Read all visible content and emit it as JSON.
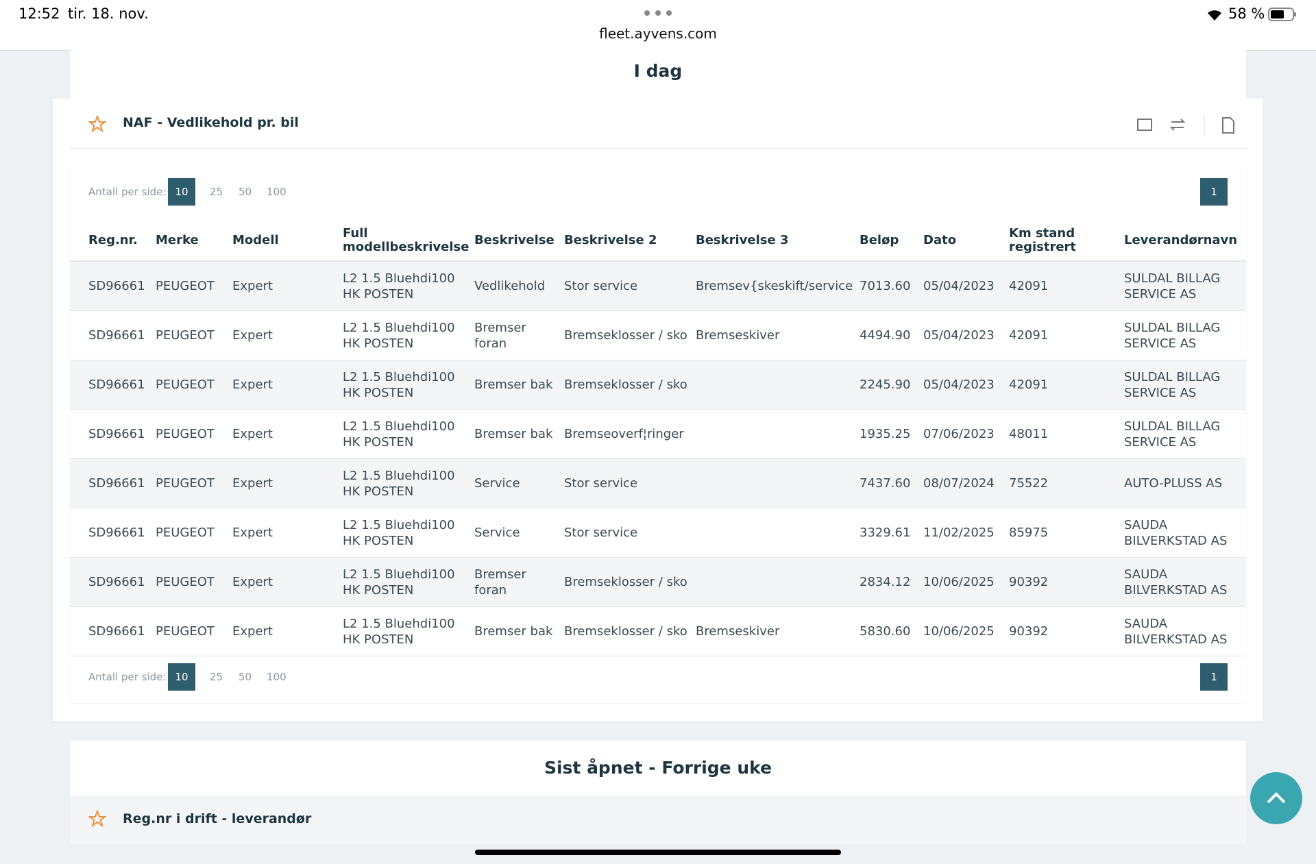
{
  "status_bar": {
    "time": "12:52",
    "date": "tir. 18. nov.",
    "url": "fleet.ayvens.com",
    "battery": "58 %"
  },
  "section_today": {
    "title": "I dag"
  },
  "report": {
    "title": "NAF - Vedlikehold pr. bil",
    "pagination": {
      "label": "Antall per side:",
      "sizes": [
        "10",
        "25",
        "50",
        "100"
      ],
      "page": "1"
    },
    "columns": [
      "Reg.nr.",
      "Merke",
      "Modell",
      "Full modellbeskrivelse",
      "Beskrivelse",
      "Beskrivelse 2",
      "Beskrivelse 3",
      "Beløp",
      "Dato",
      "Km stand registrert",
      "Leverandørnavn"
    ],
    "rows": [
      [
        "SD96661",
        "PEUGEOT",
        "Expert",
        "L2 1.5 Bluehdi100 HK POSTEN",
        "Vedlikehold",
        "Stor service",
        "Bremsev{skeskift/service",
        "7013.60",
        "05/04/2023",
        "42091",
        "SULDAL BILLAG SERVICE AS"
      ],
      [
        "SD96661",
        "PEUGEOT",
        "Expert",
        "L2 1.5 Bluehdi100 HK POSTEN",
        "Bremser foran",
        "Bremseklosser / sko",
        "Bremseskiver",
        "4494.90",
        "05/04/2023",
        "42091",
        "SULDAL BILLAG SERVICE AS"
      ],
      [
        "SD96661",
        "PEUGEOT",
        "Expert",
        "L2 1.5 Bluehdi100 HK POSTEN",
        "Bremser bak",
        "Bremseklosser / sko",
        null,
        "2245.90",
        "05/04/2023",
        "42091",
        "SULDAL BILLAG SERVICE AS"
      ],
      [
        "SD96661",
        "PEUGEOT",
        "Expert",
        "L2 1.5 Bluehdi100 HK POSTEN",
        "Bremser bak",
        "Bremseoverf¦ringer",
        null,
        "1935.25",
        "07/06/2023",
        "48011",
        "SULDAL BILLAG SERVICE AS"
      ],
      [
        "SD96661",
        "PEUGEOT",
        "Expert",
        "L2 1.5 Bluehdi100 HK POSTEN",
        "Service",
        "Stor service",
        null,
        "7437.60",
        "08/07/2024",
        "75522",
        "AUTO-PLUSS AS"
      ],
      [
        "SD96661",
        "PEUGEOT",
        "Expert",
        "L2 1.5 Bluehdi100 HK POSTEN",
        "Service",
        "Stor service",
        null,
        "3329.61",
        "11/02/2025",
        "85975",
        "SAUDA BILVERKSTAD AS"
      ],
      [
        "SD96661",
        "PEUGEOT",
        "Expert",
        "L2 1.5 Bluehdi100 HK POSTEN",
        "Bremser foran",
        "Bremseklosser / sko",
        null,
        "2834.12",
        "10/06/2025",
        "90392",
        "SAUDA BILVERKSTAD AS"
      ],
      [
        "SD96661",
        "PEUGEOT",
        "Expert",
        "L2 1.5 Bluehdi100 HK POSTEN",
        "Bremser bak",
        "Bremseklosser / sko",
        "Bremseskiver",
        "5830.60",
        "10/06/2025",
        "90392",
        "SAUDA BILVERKSTAD AS"
      ]
    ]
  },
  "section_last": {
    "title": "Sist åpnet - Forrige uke",
    "report_title": "Reg.nr i drift - leverandør"
  }
}
